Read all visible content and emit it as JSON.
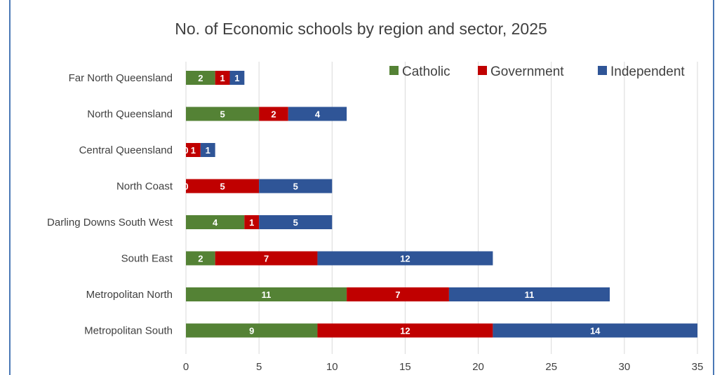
{
  "chart_data": {
    "type": "bar",
    "orientation": "horizontal",
    "stacked": true,
    "title": "No. of Economic schools by region and sector, 2025",
    "categories": [
      "Far North Queensland",
      "North Queensland",
      "Central Queensland",
      "North Coast",
      "Darling Downs South West",
      "South East",
      "Metropolitan North",
      "Metropolitan South"
    ],
    "series": [
      {
        "name": "Catholic",
        "color": "#548235",
        "values": [
          2,
          5,
          0,
          0,
          4,
          2,
          11,
          9
        ],
        "labels": [
          "2",
          "5",
          "0",
          "0",
          "4",
          "2",
          "11",
          "9"
        ]
      },
      {
        "name": "Government",
        "color": "#c00000",
        "values": [
          1,
          2,
          1,
          5,
          1,
          7,
          7,
          12
        ],
        "labels": [
          "1",
          "2",
          "1",
          "5",
          "1",
          "7",
          "7",
          "12"
        ]
      },
      {
        "name": "Independent",
        "color": "#2f5597",
        "values": [
          1,
          4,
          1,
          5,
          5,
          12,
          11,
          14
        ],
        "labels": [
          "1",
          "4",
          "1",
          "5",
          "5",
          "12",
          "11",
          "14"
        ]
      }
    ],
    "xlim": [
      0,
      35
    ],
    "xticks": [
      "0",
      "5",
      "10",
      "15",
      "20",
      "25",
      "30",
      "35"
    ],
    "xlabel": "",
    "ylabel": "",
    "grid": "vertical",
    "legend_position": "top-right"
  }
}
